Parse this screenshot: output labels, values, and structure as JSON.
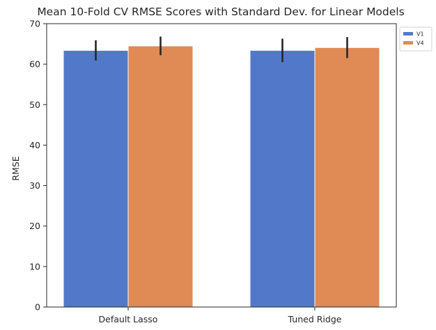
{
  "chart_data": {
    "type": "bar",
    "title": "Mean 10-Fold CV RMSE Scores with Standard Dev. for Linear Models",
    "xlabel": "",
    "ylabel": "RMSE",
    "categories": [
      "Default Lasso",
      "Tuned Ridge"
    ],
    "series": [
      {
        "name": "V1",
        "color": "#5279c9",
        "values": [
          63.4,
          63.4
        ],
        "err": [
          2.5,
          2.9
        ]
      },
      {
        "name": "V4",
        "color": "#e08b55",
        "values": [
          64.5,
          64.1
        ],
        "err": [
          2.3,
          2.6
        ]
      }
    ],
    "ylim": [
      0,
      70
    ],
    "yticks": [
      0,
      10,
      20,
      30,
      40,
      50,
      60,
      70
    ],
    "grid": false,
    "legend_position": "outside-top-right",
    "error_bar_color": "#262626"
  }
}
